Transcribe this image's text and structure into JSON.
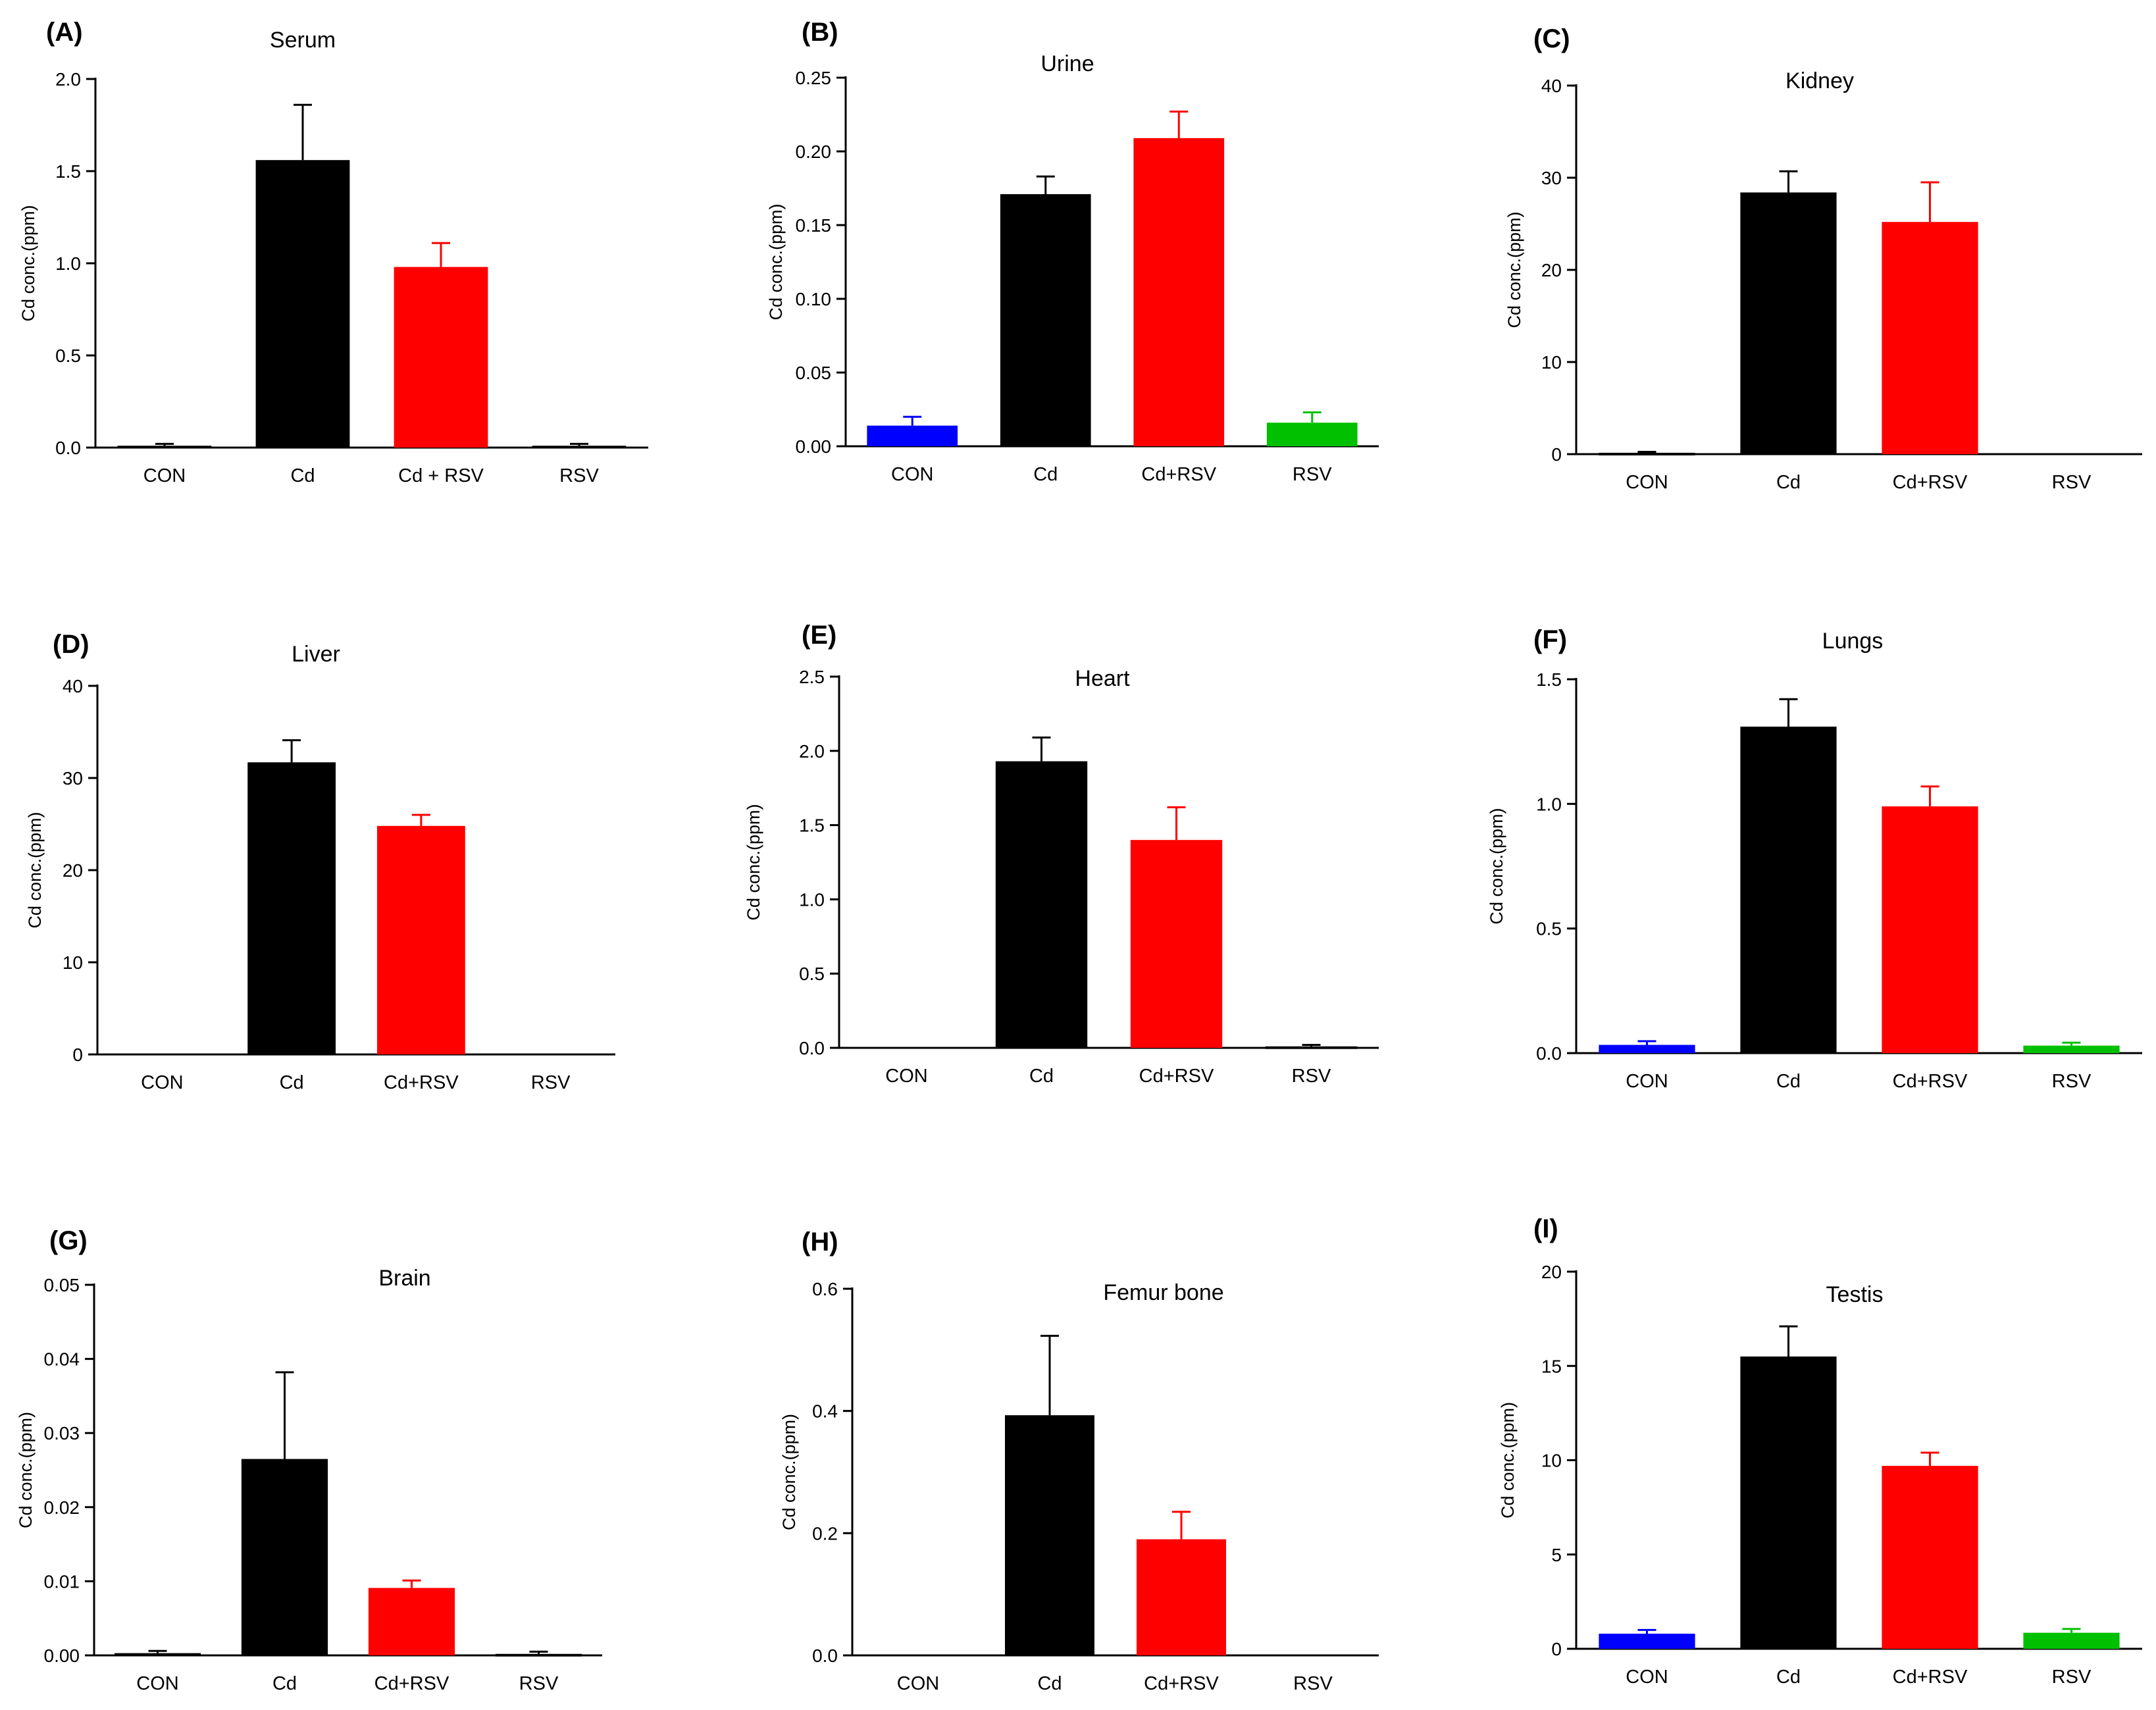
{
  "colors": {
    "CON": "#0000ff",
    "Cd": "#000000",
    "Cd+RSV": "#ff0000",
    "RSV": "#00c000"
  },
  "chart_data": [
    {
      "type": "bar",
      "panel": "(A)",
      "title": "Serum",
      "ylabel": "Cd conc.(ppm)",
      "ylim": [
        0,
        2.0
      ],
      "yticks": [
        "0.0",
        "0.5",
        "1.0",
        "1.5",
        "2.0"
      ],
      "categories": [
        "CON",
        "Cd",
        "Cd + RSV",
        "RSV"
      ],
      "values": [
        0.01,
        1.56,
        0.98,
        0.01
      ],
      "errors": [
        0.01,
        0.3,
        0.13,
        0.01
      ],
      "bar_colors": [
        "#000000",
        "#000000",
        "#ff0000",
        "#000000"
      ]
    },
    {
      "type": "bar",
      "panel": "(B)",
      "title": "Urine",
      "ylabel": "Cd conc.(ppm)",
      "ylim": [
        0,
        0.25
      ],
      "yticks": [
        "0.00",
        "0.05",
        "0.10",
        "0.15",
        "0.20",
        "0.25"
      ],
      "categories": [
        "CON",
        "Cd",
        "Cd+RSV",
        "RSV"
      ],
      "values": [
        0.014,
        0.171,
        0.209,
        0.016
      ],
      "errors": [
        0.006,
        0.012,
        0.018,
        0.007
      ],
      "bar_colors": [
        "#0000ff",
        "#000000",
        "#ff0000",
        "#00c000"
      ]
    },
    {
      "type": "bar",
      "panel": "(C)",
      "title": "Kidney",
      "ylabel": "Cd conc.(ppm)",
      "ylim": [
        0,
        40
      ],
      "yticks": [
        "0",
        "10",
        "20",
        "30",
        "40"
      ],
      "categories": [
        "CON",
        "Cd",
        "Cd+RSV",
        "RSV"
      ],
      "values": [
        0.15,
        28.4,
        25.2,
        0
      ],
      "errors": [
        0.1,
        2.3,
        4.3,
        0
      ],
      "bar_colors": [
        "#000000",
        "#000000",
        "#ff0000",
        "#00c000"
      ]
    },
    {
      "type": "bar",
      "panel": "(D)",
      "title": "Liver",
      "ylabel": "Cd conc.(ppm)",
      "ylim": [
        0,
        40
      ],
      "yticks": [
        "0",
        "10",
        "20",
        "30",
        "40"
      ],
      "categories": [
        "CON",
        "Cd",
        "Cd+RSV",
        "RSV"
      ],
      "values": [
        0,
        31.7,
        24.8,
        0
      ],
      "errors": [
        0,
        2.4,
        1.2,
        0
      ],
      "bar_colors": [
        "#0000ff",
        "#000000",
        "#ff0000",
        "#00c000"
      ]
    },
    {
      "type": "bar",
      "panel": "(E)",
      "title": "Heart",
      "ylabel": "Cd conc.(ppm)",
      "ylim": [
        0,
        2.5
      ],
      "yticks": [
        "0.0",
        "0.5",
        "1.0",
        "1.5",
        "2.0",
        "2.5"
      ],
      "categories": [
        "CON",
        "Cd",
        "Cd+RSV",
        "RSV"
      ],
      "values": [
        0,
        1.93,
        1.4,
        0.01
      ],
      "errors": [
        0,
        0.16,
        0.22,
        0.01
      ],
      "bar_colors": [
        "#0000ff",
        "#000000",
        "#ff0000",
        "#000000"
      ]
    },
    {
      "type": "bar",
      "panel": "(F)",
      "title": "Lungs",
      "ylabel": "Cd conc.(ppm)",
      "ylim": [
        0,
        1.5
      ],
      "yticks": [
        "0.0",
        "0.5",
        "1.0",
        "1.5"
      ],
      "categories": [
        "CON",
        "Cd",
        "Cd+RSV",
        "RSV"
      ],
      "values": [
        0.033,
        1.31,
        0.99,
        0.03
      ],
      "errors": [
        0.015,
        0.11,
        0.08,
        0.012
      ],
      "bar_colors": [
        "#0000ff",
        "#000000",
        "#ff0000",
        "#00c000"
      ]
    },
    {
      "type": "bar",
      "panel": "(G)",
      "title": "Brain",
      "ylabel": "Cd conc.(ppm)",
      "ylim": [
        0,
        0.05
      ],
      "yticks": [
        "0.00",
        "0.01",
        "0.02",
        "0.03",
        "0.04",
        "0.05"
      ],
      "categories": [
        "CON",
        "Cd",
        "Cd+RSV",
        "RSV"
      ],
      "values": [
        0.0003,
        0.0265,
        0.0091,
        0.0002
      ],
      "errors": [
        0.0003,
        0.0117,
        0.001,
        0.0003
      ],
      "bar_colors": [
        "#000000",
        "#000000",
        "#ff0000",
        "#000000"
      ]
    },
    {
      "type": "bar",
      "panel": "(H)",
      "title": "Femur bone",
      "ylabel": "Cd conc.(ppm)",
      "ylim": [
        0,
        0.6
      ],
      "yticks": [
        "0.0",
        "0.2",
        "0.4",
        "0.6"
      ],
      "categories": [
        "CON",
        "Cd",
        "Cd+RSV",
        "RSV"
      ],
      "values": [
        0,
        0.393,
        0.19,
        0
      ],
      "errors": [
        0,
        0.13,
        0.045,
        0
      ],
      "bar_colors": [
        "#0000ff",
        "#000000",
        "#ff0000",
        "#00c000"
      ]
    },
    {
      "type": "bar",
      "panel": "(I)",
      "title": "Testis",
      "ylabel": "Cd conc.(ppm)",
      "ylim": [
        0,
        20
      ],
      "yticks": [
        "0",
        "5",
        "10",
        "15",
        "20"
      ],
      "categories": [
        "CON",
        "Cd",
        "Cd+RSV",
        "RSV"
      ],
      "values": [
        0.8,
        15.5,
        9.7,
        0.85
      ],
      "errors": [
        0.2,
        1.6,
        0.7,
        0.2
      ],
      "bar_colors": [
        "#0000ff",
        "#000000",
        "#ff0000",
        "#00c000"
      ]
    }
  ]
}
